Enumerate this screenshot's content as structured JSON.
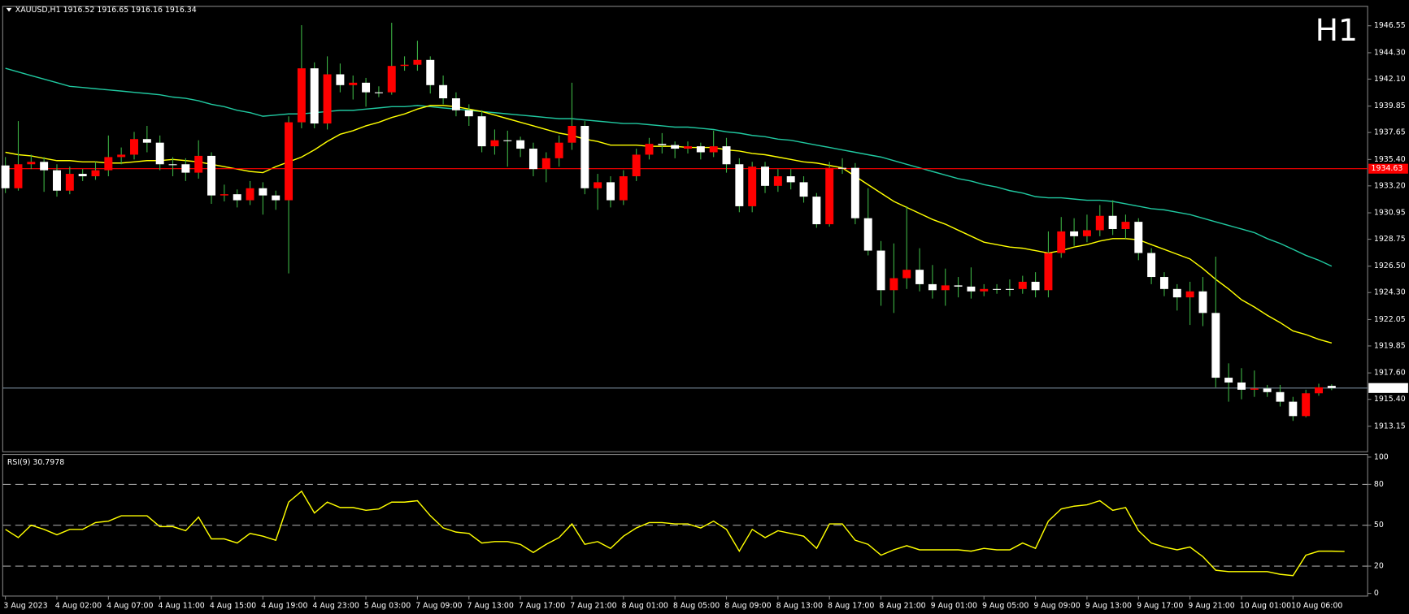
{
  "chart_data": [
    {
      "type": "candlestick",
      "title": "XAUUSD,H1  1916.52 1916.65 1916.16 1916.34",
      "annotation": "H1",
      "annotation_color": "#ff0000",
      "bull_color": "#ff0000",
      "bear_color": "#ffffff",
      "wick_color": "#3cb043",
      "categories": [
        "3 Aug 2023",
        null,
        null,
        null,
        "4 Aug 02:00",
        null,
        null,
        null,
        "4 Aug 07:00",
        null,
        null,
        null,
        "4 Aug 11:00",
        null,
        null,
        null,
        "4 Aug 15:00",
        null,
        null,
        null,
        "4 Aug 19:00",
        null,
        null,
        null,
        "4 Aug 23:00",
        null,
        null,
        null,
        "5 Aug 03:00",
        null,
        null,
        null,
        "7 Aug 09:00",
        null,
        null,
        null,
        "7 Aug 13:00",
        null,
        null,
        null,
        "7 Aug 17:00",
        null,
        null,
        null,
        "7 Aug 21:00",
        null,
        null,
        null,
        "8 Aug 01:00",
        null,
        null,
        null,
        "8 Aug 05:00",
        null,
        null,
        null,
        "8 Aug 09:00",
        null,
        null,
        null,
        "8 Aug 13:00",
        null,
        null,
        null,
        "8 Aug 17:00",
        null,
        null,
        null,
        "8 Aug 21:00",
        null,
        null,
        null,
        "9 Aug 01:00",
        null,
        null,
        null,
        "9 Aug 05:00",
        null,
        null,
        null,
        "9 Aug 09:00",
        null,
        null,
        null,
        "9 Aug 13:00",
        null,
        null,
        null,
        "9 Aug 17:00",
        null,
        null,
        null,
        "9 Aug 21:00",
        null,
        null,
        null,
        "10 Aug 01:00",
        null,
        null,
        null,
        "10 Aug 06:00",
        null,
        null,
        null
      ],
      "open": [
        1934.9,
        1933.0,
        1935.0,
        1935.2,
        1934.5,
        1932.8,
        1934.2,
        1934.0,
        1934.5,
        1935.6,
        1935.8,
        1937.1,
        1936.8,
        1935.0,
        1935.0,
        1934.3,
        1935.7,
        1932.4,
        1932.5,
        1932.0,
        1933.0,
        1932.4,
        1932.0,
        1938.5,
        1943.0,
        1938.4,
        1942.5,
        1941.6,
        1941.8,
        1941.0,
        1941.0,
        1943.2,
        1943.3,
        1943.7,
        1941.6,
        1940.5,
        1939.5,
        1939.0,
        1936.5,
        1937.0,
        1937.0,
        1936.3,
        1934.6,
        1935.5,
        1936.8,
        1938.2,
        1933.0,
        1933.5,
        1932.0,
        1934.0,
        1935.8,
        1936.7,
        1936.6,
        1936.3,
        1936.5,
        1936.0,
        1936.5,
        1935.0,
        1931.5,
        1934.8,
        1933.2,
        1934.0,
        1933.5,
        1932.3,
        1930.0,
        1934.7,
        1934.7,
        1930.5,
        1927.8,
        1924.5,
        1925.5,
        1926.2,
        1925.0,
        1924.5,
        1924.9,
        1924.8,
        1924.4,
        1924.6,
        1924.6,
        1924.6,
        1925.2,
        1924.5,
        1927.6,
        1929.4,
        1929.0,
        1929.5,
        1930.7,
        1929.6,
        1930.2,
        1927.6,
        1925.6,
        1924.6,
        1923.9,
        1924.4,
        1922.6,
        1917.2,
        1916.8,
        1916.2,
        1916.3,
        1916.0,
        1915.2,
        1914.0,
        1915.9,
        1916.52
      ],
      "high": [
        1935.6,
        1938.6,
        1935.8,
        1935.6,
        1935.0,
        1934.8,
        1934.6,
        1935.2,
        1937.4,
        1936.4,
        1937.7,
        1938.2,
        1937.4,
        1935.6,
        1935.5,
        1937.0,
        1936.0,
        1933.3,
        1932.9,
        1933.6,
        1933.5,
        1932.8,
        1939.0,
        1946.6,
        1943.5,
        1944.0,
        1943.4,
        1942.4,
        1942.2,
        1941.5,
        1946.8,
        1944.0,
        1945.3,
        1944.0,
        1942.4,
        1941.0,
        1940.0,
        1939.5,
        1937.9,
        1937.8,
        1937.3,
        1936.8,
        1936.0,
        1937.4,
        1941.8,
        1938.6,
        1934.2,
        1934.0,
        1934.5,
        1936.3,
        1937.2,
        1937.6,
        1936.9,
        1936.9,
        1936.8,
        1937.8,
        1937.2,
        1935.5,
        1935.2,
        1935.2,
        1934.6,
        1934.6,
        1934.0,
        1932.6,
        1935.2,
        1935.5,
        1935.1,
        1933.0,
        1928.6,
        1928.4,
        1931.5,
        1928.0,
        1926.6,
        1926.3,
        1925.6,
        1926.4,
        1925.0,
        1925.0,
        1925.4,
        1925.7,
        1926.0,
        1929.4,
        1930.6,
        1930.5,
        1930.8,
        1931.6,
        1932.0,
        1930.8,
        1930.5,
        1928.0,
        1926.0,
        1925.0,
        1925.2,
        1925.6,
        1927.3,
        1918.4,
        1918.0,
        1917.8,
        1916.6,
        1916.6,
        1915.6,
        1916.2,
        1916.7,
        1916.65
      ],
      "low": [
        1932.6,
        1932.8,
        1934.6,
        1932.7,
        1932.3,
        1932.5,
        1933.6,
        1933.7,
        1934.0,
        1935.0,
        1935.4,
        1936.0,
        1934.5,
        1934.0,
        1933.6,
        1933.8,
        1931.7,
        1931.9,
        1931.4,
        1931.6,
        1930.8,
        1931.2,
        1925.9,
        1938.0,
        1938.0,
        1937.9,
        1941.0,
        1940.4,
        1939.8,
        1940.6,
        1940.8,
        1942.8,
        1942.8,
        1940.9,
        1940.0,
        1939.0,
        1938.2,
        1936.0,
        1935.8,
        1934.8,
        1935.6,
        1934.0,
        1933.5,
        1934.8,
        1936.2,
        1932.5,
        1931.2,
        1931.4,
        1931.6,
        1933.6,
        1935.4,
        1935.9,
        1935.5,
        1935.9,
        1935.4,
        1935.6,
        1934.3,
        1931.0,
        1931.0,
        1932.6,
        1932.7,
        1932.9,
        1931.8,
        1929.7,
        1929.8,
        1934.2,
        1930.0,
        1927.4,
        1923.2,
        1922.6,
        1924.6,
        1924.4,
        1923.8,
        1923.2,
        1923.9,
        1923.8,
        1924.0,
        1924.2,
        1924.0,
        1924.2,
        1923.9,
        1923.9,
        1927.2,
        1928.2,
        1928.5,
        1929.0,
        1929.1,
        1928.8,
        1927.0,
        1925.0,
        1924.0,
        1922.8,
        1921.6,
        1921.5,
        1916.4,
        1915.2,
        1915.4,
        1915.6,
        1915.6,
        1914.8,
        1913.6,
        1913.9,
        1915.7,
        1916.16
      ],
      "close": [
        1933.0,
        1935.0,
        1935.2,
        1934.5,
        1932.8,
        1934.2,
        1934.0,
        1934.5,
        1935.6,
        1935.8,
        1937.1,
        1936.8,
        1935.0,
        1935.0,
        1934.3,
        1935.7,
        1932.4,
        1932.5,
        1932.0,
        1933.0,
        1932.4,
        1932.0,
        1938.5,
        1943.0,
        1938.4,
        1942.5,
        1941.6,
        1941.8,
        1941.0,
        1941.0,
        1943.2,
        1943.3,
        1943.7,
        1941.6,
        1940.5,
        1939.5,
        1939.0,
        1936.5,
        1937.0,
        1937.0,
        1936.3,
        1934.6,
        1935.5,
        1936.8,
        1938.2,
        1933.0,
        1933.5,
        1932.0,
        1934.0,
        1935.8,
        1936.7,
        1936.6,
        1936.3,
        1936.5,
        1936.0,
        1936.5,
        1935.0,
        1931.5,
        1934.8,
        1933.2,
        1934.0,
        1933.5,
        1932.3,
        1930.0,
        1934.7,
        1934.7,
        1930.5,
        1927.8,
        1924.5,
        1925.5,
        1926.2,
        1925.0,
        1924.5,
        1924.9,
        1924.8,
        1924.4,
        1924.6,
        1924.6,
        1924.6,
        1925.2,
        1924.5,
        1927.6,
        1929.4,
        1929.0,
        1929.5,
        1930.7,
        1929.6,
        1930.2,
        1927.6,
        1925.6,
        1924.6,
        1923.9,
        1924.4,
        1922.6,
        1917.2,
        1916.8,
        1916.2,
        1916.3,
        1916.0,
        1915.2,
        1914.0,
        1915.9,
        1916.4,
        1916.34
      ],
      "series": [
        {
          "color": "#20c8a0",
          "values": [
            1943.0,
            1942.7,
            1942.4,
            1942.1,
            1941.8,
            1941.5,
            1941.4,
            1941.3,
            1941.2,
            1941.1,
            1941.0,
            1940.9,
            1940.8,
            1940.6,
            1940.5,
            1940.3,
            1940.0,
            1939.8,
            1939.5,
            1939.3,
            1939.0,
            1939.1,
            1939.2,
            1939.2,
            1939.3,
            1939.4,
            1939.5,
            1939.5,
            1939.6,
            1939.7,
            1939.8,
            1939.8,
            1939.9,
            1939.8,
            1939.7,
            1939.6,
            1939.5,
            1939.4,
            1939.3,
            1939.2,
            1939.1,
            1939.0,
            1938.9,
            1938.8,
            1938.8,
            1938.7,
            1938.6,
            1938.5,
            1938.4,
            1938.4,
            1938.3,
            1938.2,
            1938.1,
            1938.1,
            1938.0,
            1937.9,
            1937.7,
            1937.6,
            1937.4,
            1937.3,
            1937.1,
            1937.0,
            1936.8,
            1936.6,
            1936.4,
            1936.2,
            1936.0,
            1935.8,
            1935.6,
            1935.3,
            1935.0,
            1934.7,
            1934.4,
            1934.1,
            1933.8,
            1933.6,
            1933.3,
            1933.1,
            1932.8,
            1932.6,
            1932.3,
            1932.2,
            1932.2,
            1932.1,
            1932.0,
            1932.0,
            1931.9,
            1931.7,
            1931.5,
            1931.3,
            1931.2,
            1931.0,
            1930.8,
            1930.5,
            1930.2,
            1929.9,
            1929.6,
            1929.3,
            1928.8,
            1928.4,
            1927.9,
            1927.4,
            1927.0,
            1926.5
          ]
        },
        {
          "color": "#ffff00",
          "values": [
            1936.0,
            1935.8,
            1935.7,
            1935.5,
            1935.3,
            1935.3,
            1935.2,
            1935.2,
            1935.1,
            1935.1,
            1935.2,
            1935.3,
            1935.3,
            1935.4,
            1935.3,
            1935.2,
            1935.0,
            1934.8,
            1934.6,
            1934.4,
            1934.3,
            1934.8,
            1935.2,
            1935.6,
            1936.2,
            1936.9,
            1937.5,
            1937.8,
            1938.2,
            1938.5,
            1938.9,
            1939.2,
            1939.6,
            1939.9,
            1939.9,
            1939.8,
            1939.6,
            1939.4,
            1939.1,
            1938.8,
            1938.5,
            1938.2,
            1937.9,
            1937.6,
            1937.4,
            1937.1,
            1936.9,
            1936.6,
            1936.6,
            1936.6,
            1936.5,
            1936.5,
            1936.5,
            1936.4,
            1936.4,
            1936.4,
            1936.2,
            1936.1,
            1935.9,
            1935.8,
            1935.6,
            1935.4,
            1935.2,
            1935.1,
            1934.9,
            1934.7,
            1934.0,
            1933.3,
            1932.6,
            1931.9,
            1931.4,
            1930.9,
            1930.4,
            1930.0,
            1929.5,
            1929.0,
            1928.5,
            1928.3,
            1928.1,
            1928.0,
            1927.8,
            1927.6,
            1927.8,
            1928.1,
            1928.3,
            1928.6,
            1928.8,
            1928.8,
            1928.7,
            1928.3,
            1927.9,
            1927.5,
            1927.1,
            1926.3,
            1925.4,
            1924.6,
            1923.7,
            1923.1,
            1922.4,
            1921.8,
            1921.1,
            1920.8,
            1920.4,
            1920.1
          ]
        }
      ],
      "hlines": [
        {
          "value": 1934.63,
          "color": "#ff0000",
          "box_color": "#ff0000",
          "text_color": "#ffffff"
        },
        {
          "value": 1916.34,
          "color": "#778899",
          "box_color": "#ffffff",
          "text_color": "#000000"
        }
      ],
      "ylim": [
        1911.1,
        1948.1
      ],
      "yticks": [
        1946.55,
        {
          "value": 1944.3,
          "label": "1944.30"
        },
        {
          "value": 1942.1,
          "label": "1942.10"
        },
        1939.85,
        1937.65,
        {
          "value": 1935.4,
          "label": "1935.40"
        },
        {
          "value": 1933.2,
          "label": "1933.20"
        },
        1930.95,
        1928.75,
        {
          "value": 1926.5,
          "label": "1926.50"
        },
        {
          "value": 1924.3,
          "label": "1924.30"
        },
        1922.05,
        1919.85,
        {
          "value": 1917.6,
          "label": "1917.60"
        },
        {
          "value": 1915.4,
          "label": "1915.40"
        },
        1913.15
      ]
    },
    {
      "type": "line",
      "title": "RSI(9) 30.7978",
      "series": [
        {
          "color": "#ffff00",
          "values": [
            47,
            41,
            50,
            47,
            43,
            47,
            47,
            52,
            53,
            57,
            57,
            57,
            49,
            49,
            46,
            56,
            40,
            40,
            37,
            44,
            42,
            39,
            67,
            75,
            59,
            67,
            63,
            63,
            61,
            62,
            67,
            67,
            68,
            57,
            48,
            45,
            44,
            37,
            38,
            38,
            36,
            30,
            36,
            41,
            51,
            36,
            38,
            33,
            42,
            48,
            52,
            52,
            51,
            51,
            48,
            53,
            47,
            31,
            47,
            41,
            46,
            44,
            42,
            33,
            51,
            51,
            39,
            36,
            28,
            32,
            35,
            32,
            32,
            32,
            32,
            31,
            33,
            32,
            32,
            37,
            33,
            53,
            62,
            64,
            65,
            68,
            61,
            63,
            46,
            37,
            34,
            32,
            34,
            27,
            17,
            16,
            16,
            16,
            16,
            14,
            13,
            28,
            31,
            31,
            30.7978
          ]
        }
      ],
      "ylim": [
        0,
        100
      ],
      "yticks": [
        0,
        20,
        50,
        80,
        100
      ],
      "levels": [
        20,
        50,
        80
      ],
      "level_color": "#a0a0a0"
    }
  ]
}
